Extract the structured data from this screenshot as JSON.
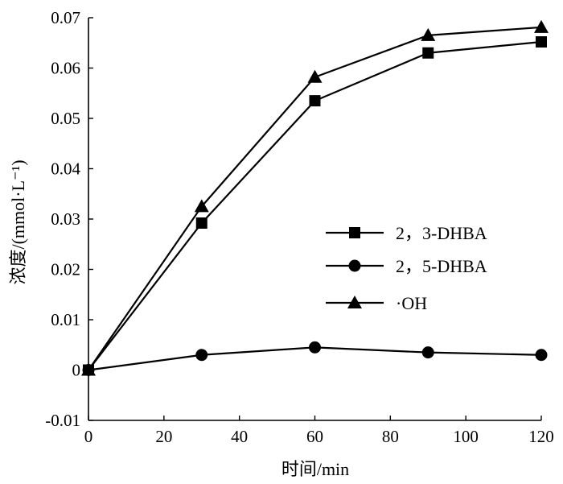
{
  "chart_data": {
    "type": "line",
    "title": "",
    "xlabel": "时间/min",
    "ylabel": "浓度/(mmol·L⁻¹)",
    "xlim": [
      0,
      120
    ],
    "ylim": [
      -0.01,
      0.07
    ],
    "x_ticks": [
      "0",
      "20",
      "40",
      "60",
      "80",
      "100",
      "120"
    ],
    "y_ticks": [
      "-0.01",
      "0",
      "0.01",
      "0.02",
      "0.03",
      "0.04",
      "0.05",
      "0.06",
      "0.07"
    ],
    "grid": false,
    "legend_position": "center-right",
    "x": [
      0,
      30,
      60,
      90,
      120
    ],
    "series": [
      {
        "name": "2，3-DHBA",
        "marker": "square",
        "values": [
          0,
          0.0292,
          0.0535,
          0.063,
          0.0652
        ]
      },
      {
        "name": "2，5-DHBA",
        "marker": "circle",
        "values": [
          0,
          0.003,
          0.0045,
          0.0035,
          0.003
        ]
      },
      {
        "name": "·OH",
        "marker": "triangle",
        "values": [
          0,
          0.0325,
          0.0582,
          0.0665,
          0.0681
        ]
      }
    ]
  }
}
